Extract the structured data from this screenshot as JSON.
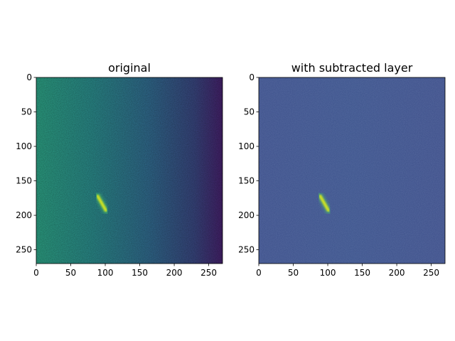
{
  "chart_data": [
    {
      "type": "heatmap",
      "title": "original",
      "xlim": [
        0,
        270
      ],
      "ylim": [
        270,
        0
      ],
      "xticks": [
        0,
        50,
        100,
        150,
        200,
        250
      ],
      "yticks": [
        0,
        50,
        100,
        150,
        200,
        250
      ],
      "colormap": "viridis",
      "background_gradient": "left-to-right, bright at left (~0.55) fading to dark at right (~0.15)",
      "bright_feature": {
        "x": [
          88,
          102
        ],
        "y": [
          170,
          195
        ],
        "shape": "diagonal streak"
      }
    },
    {
      "type": "heatmap",
      "title": "with subtracted layer",
      "xlim": [
        0,
        270
      ],
      "ylim": [
        270,
        0
      ],
      "xticks": [
        0,
        50,
        100,
        150,
        200,
        250
      ],
      "yticks": [
        0,
        50,
        100,
        150,
        200,
        250
      ],
      "colormap": "viridis",
      "background_gradient": "uniform (~0.25)",
      "bright_feature": {
        "x": [
          88,
          102
        ],
        "y": [
          170,
          195
        ],
        "shape": "diagonal streak"
      }
    }
  ]
}
